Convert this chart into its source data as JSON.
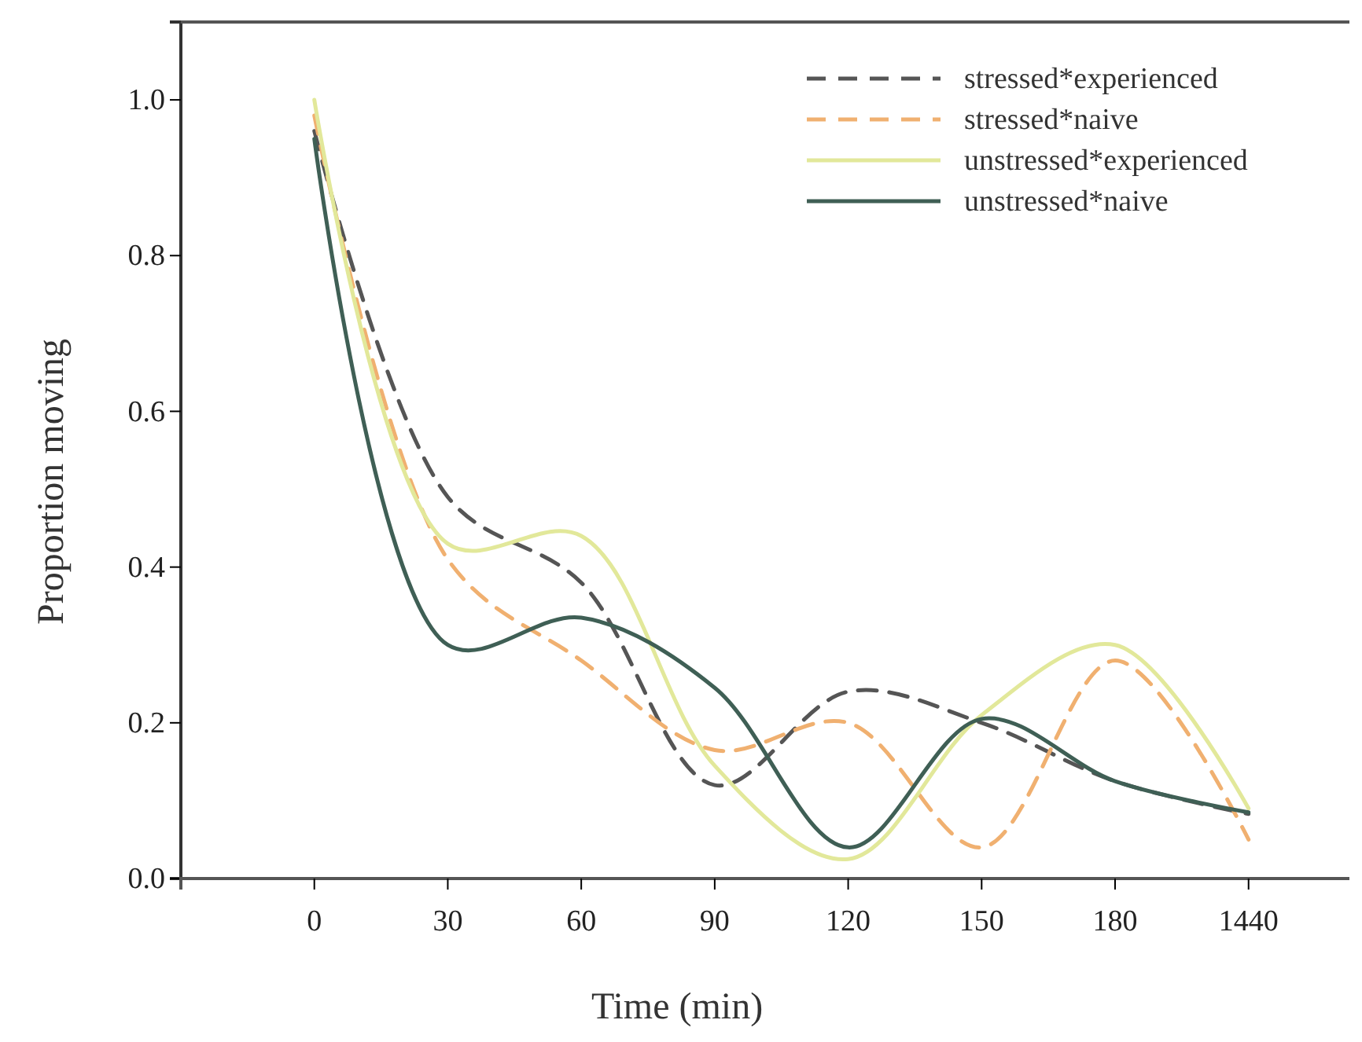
{
  "chart_data": {
    "type": "line",
    "xlabel": "Time (min)",
    "ylabel": "Proportion moving",
    "categories": [
      "0",
      "30",
      "60",
      "90",
      "120",
      "150",
      "180",
      "1440"
    ],
    "series": [
      {
        "name": "stressed*experienced",
        "color": "#555555",
        "line_style": "dashed",
        "values": [
          0.96,
          0.49,
          0.38,
          0.12,
          0.24,
          0.2,
          0.125,
          0.083
        ]
      },
      {
        "name": "stressed*naive",
        "color": "#f0b070",
        "line_style": "dashed",
        "values": [
          0.98,
          0.41,
          0.28,
          0.165,
          0.2,
          0.04,
          0.28,
          0.05
        ]
      },
      {
        "name": "unstressed*experienced",
        "color": "#e2e89a",
        "line_style": "solid",
        "values": [
          1.0,
          0.43,
          0.44,
          0.145,
          0.025,
          0.21,
          0.3,
          0.09
        ]
      },
      {
        "name": "unstressed*naive",
        "color": "#3f5f55",
        "line_style": "solid",
        "values": [
          0.95,
          0.3,
          0.335,
          0.245,
          0.04,
          0.205,
          0.125,
          0.085
        ]
      }
    ],
    "ylim": [
      0,
      1.1
    ],
    "yticks": [
      {
        "value": 0,
        "label": "0.0"
      },
      {
        "value": 0.2,
        "label": "0.2"
      },
      {
        "value": 0.4,
        "label": "0.4"
      },
      {
        "value": 0.6,
        "label": "0.6"
      },
      {
        "value": 0.8,
        "label": "0.8"
      },
      {
        "value": 1,
        "label": "1.0"
      }
    ],
    "legend": "top right",
    "grid": false,
    "marker": "none"
  }
}
